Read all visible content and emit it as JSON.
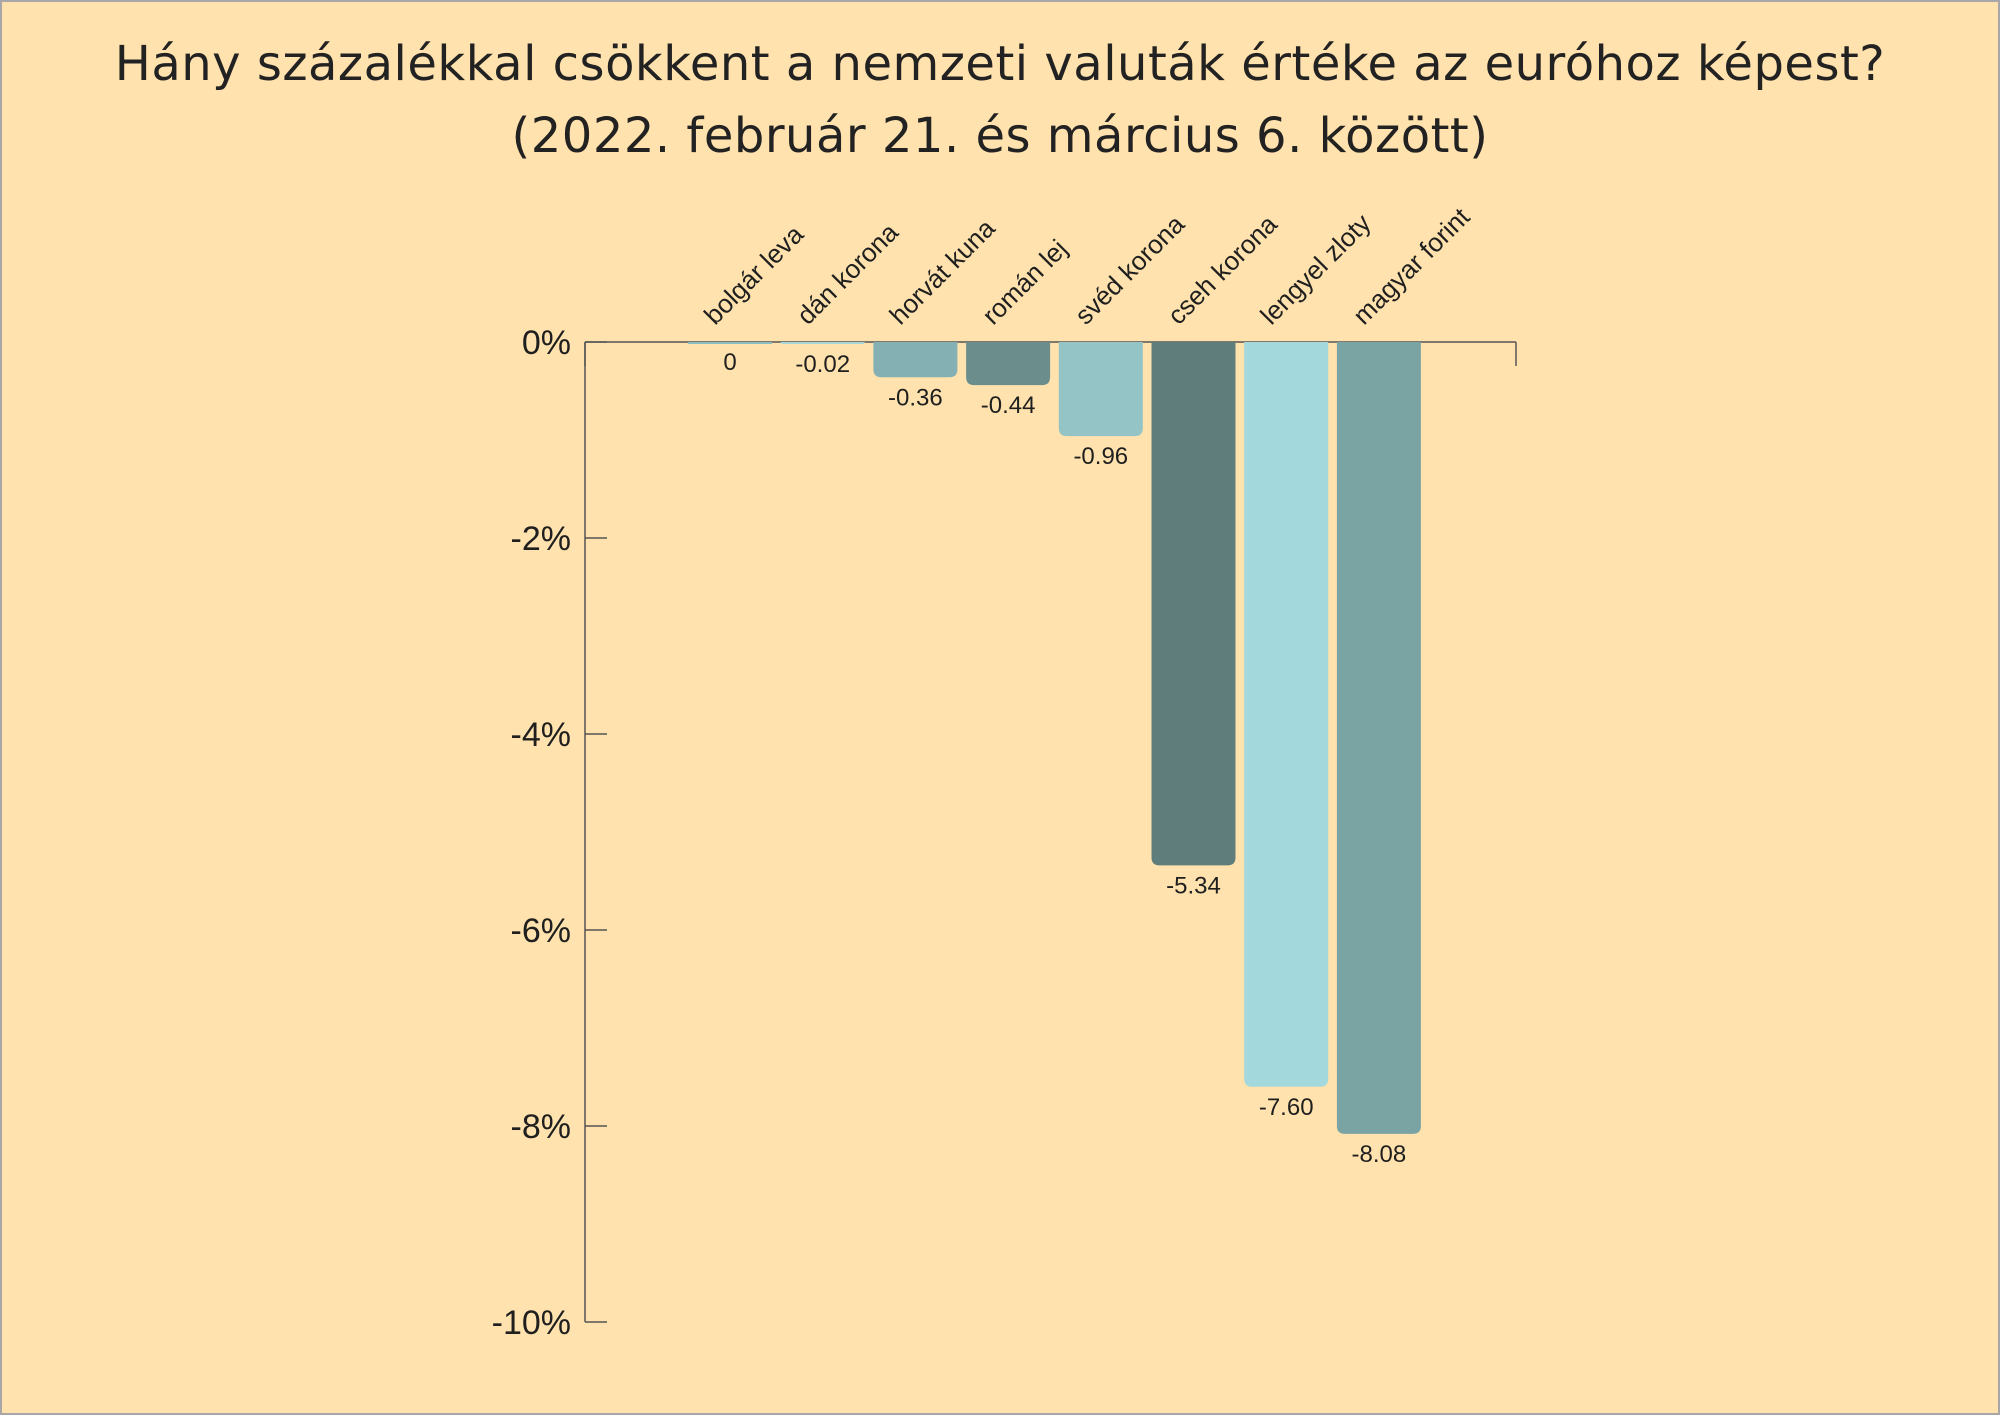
{
  "chart_data": {
    "type": "bar",
    "title": "Hány százalékkal csökkent a nemzeti valuták értéke az euróhoz képest?",
    "subtitle": "(2022. február 21. és március 6. között)",
    "categories": [
      "bolgár leva",
      "dán korona",
      "horvát kuna",
      "román lej",
      "svéd korona",
      "cseh korona",
      "lengyel zloty",
      "magyar forint"
    ],
    "values": [
      0,
      -0.02,
      -0.36,
      -0.44,
      -0.96,
      -5.34,
      -7.6,
      -8.08
    ],
    "value_labels": [
      "0",
      "-0.02",
      "-0.36",
      "-0.44",
      "-0.96",
      "-5.34",
      "-7.60",
      "-8.08"
    ],
    "colors": [
      "#8cbdc0",
      "#a9d6d9",
      "#84b0b4",
      "#6b8e8d",
      "#94c4c6",
      "#5e7d7b",
      "#a3d8dc",
      "#7aa3a4"
    ],
    "ylim": [
      -10,
      0
    ],
    "yticks": [
      0,
      -2,
      -4,
      -6,
      -8,
      -10
    ],
    "ytick_labels": [
      "0%",
      "-2%",
      "-4%",
      "-6%",
      "-8%",
      "-10%"
    ],
    "xlabel": "",
    "ylabel": "",
    "grid": false,
    "legend": "none"
  },
  "colors": {
    "background": "#ffe2ad",
    "axis": "#555555",
    "text": "#1f1f1f"
  }
}
